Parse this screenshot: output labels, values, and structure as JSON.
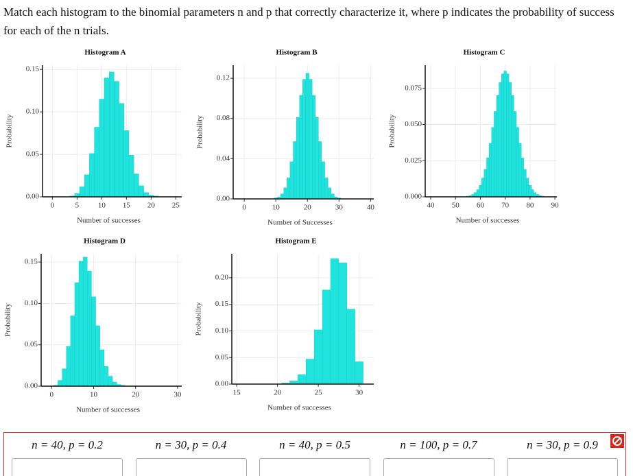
{
  "question": "Match each histogram to the binomial parameters n and p that correctly characterize it, where p indicates the probability of success for each of the n trials.",
  "chart_data": [
    {
      "type": "histogram",
      "title": "Histogram A",
      "xlabel": "Number of successes",
      "ylabel": "Probability",
      "color": "#1fe3dc",
      "grid": true,
      "x": [
        4,
        5,
        6,
        7,
        8,
        9,
        10,
        11,
        12,
        13,
        14,
        15,
        16,
        17,
        18,
        19,
        20,
        21,
        22
      ],
      "values": [
        0.001,
        0.004,
        0.012,
        0.026,
        0.051,
        0.082,
        0.115,
        0.14,
        0.147,
        0.136,
        0.11,
        0.078,
        0.049,
        0.027,
        0.013,
        0.005,
        0.002,
        0.001,
        0.0002
      ],
      "xlim": [
        -2,
        26.2
      ],
      "xticks": [
        0,
        5,
        10,
        15,
        20,
        25
      ],
      "ylim": [
        0,
        0.155
      ],
      "yticks": [
        {
          "value": 0,
          "label": "0.00"
        },
        0.05,
        {
          "value": 0.1,
          "label": "0.10"
        },
        0.15
      ]
    },
    {
      "type": "histogram",
      "title": "Histogram B",
      "xlabel": "Number of Successes",
      "ylabel": "Probability",
      "color": "#1fe3dc",
      "grid": true,
      "x": [
        10,
        11,
        12,
        13,
        14,
        15,
        16,
        17,
        18,
        19,
        20,
        21,
        22,
        23,
        24,
        25,
        26,
        27,
        28,
        29,
        30
      ],
      "values": [
        0.001,
        0.002,
        0.005,
        0.011,
        0.021,
        0.037,
        0.057,
        0.081,
        0.103,
        0.119,
        0.125,
        0.119,
        0.103,
        0.081,
        0.057,
        0.037,
        0.021,
        0.011,
        0.005,
        0.002,
        0.001
      ],
      "xlim": [
        -3.5,
        41
      ],
      "xticks": [
        0,
        10,
        20,
        30,
        40
      ],
      "ylim": [
        0,
        0.133
      ],
      "yticks": [
        {
          "value": 0,
          "label": "0.00"
        },
        0.04,
        0.08,
        0.12
      ]
    },
    {
      "type": "histogram",
      "title": "Histogram C",
      "xlabel": "Number of successes",
      "ylabel": "Probability",
      "color": "#1fe3dc",
      "grid": true,
      "x": [
        55,
        56,
        57,
        58,
        59,
        60,
        61,
        62,
        63,
        64,
        65,
        66,
        67,
        68,
        69,
        70,
        71,
        72,
        73,
        74,
        75,
        76,
        77,
        78,
        79,
        80,
        81,
        82,
        83,
        84,
        85
      ],
      "values": [
        0.0005,
        0.0009,
        0.0017,
        0.003,
        0.005,
        0.008,
        0.013,
        0.019,
        0.027,
        0.037,
        0.048,
        0.059,
        0.07,
        0.079,
        0.085,
        0.087,
        0.085,
        0.079,
        0.07,
        0.059,
        0.048,
        0.037,
        0.027,
        0.019,
        0.013,
        0.008,
        0.005,
        0.003,
        0.0017,
        0.0009,
        0.0005
      ],
      "xlim": [
        37.8,
        90.8
      ],
      "xticks": [
        40,
        50,
        60,
        70,
        80,
        90
      ],
      "ylim": [
        0,
        0.091
      ],
      "yticks": [
        {
          "value": 0,
          "label": "0.000"
        },
        0.025,
        {
          "value": 0.05,
          "label": "0.050"
        },
        0.075
      ]
    },
    {
      "type": "histogram",
      "title": "Histogram D",
      "xlabel": "Number of successes",
      "ylabel": "Probability",
      "color": "#1fe3dc",
      "grid": true,
      "x": [
        1,
        2,
        3,
        4,
        5,
        6,
        7,
        8,
        9,
        10,
        11,
        12,
        13,
        14,
        15,
        16,
        17,
        18
      ],
      "values": [
        0.001,
        0.007,
        0.021,
        0.048,
        0.085,
        0.125,
        0.151,
        0.156,
        0.139,
        0.108,
        0.073,
        0.044,
        0.024,
        0.012,
        0.005,
        0.002,
        0.001,
        0.0002
      ],
      "xlim": [
        -2.5,
        31
      ],
      "xticks": [
        0,
        10,
        20,
        30
      ],
      "ylim": [
        0,
        0.16
      ],
      "yticks": [
        {
          "value": 0,
          "label": "0.00"
        },
        0.05,
        {
          "value": 0.1,
          "label": "0.10"
        },
        0.15
      ]
    },
    {
      "type": "histogram",
      "title": "Histogram E",
      "xlabel": "Number of successes",
      "ylabel": "Probability",
      "color": "#1fe3dc",
      "grid": true,
      "x": [
        20,
        21,
        22,
        23,
        24,
        25,
        26,
        27,
        28,
        29,
        30
      ],
      "values": [
        0.0004,
        0.002,
        0.006,
        0.018,
        0.047,
        0.102,
        0.177,
        0.236,
        0.228,
        0.141,
        0.042
      ],
      "xlim": [
        14.4,
        31.8
      ],
      "xticks": [
        15,
        20,
        25,
        30
      ],
      "ylim": [
        0,
        0.245
      ],
      "yticks": [
        {
          "value": 0,
          "label": "0.00"
        },
        0.05,
        {
          "value": 0.1,
          "label": "0.10"
        },
        0.15,
        {
          "value": 0.2,
          "label": "0.20"
        }
      ]
    }
  ],
  "options": [
    "n = 40, p = 0.2",
    "n = 30, p = 0.4",
    "n = 40, p = 0.5",
    "n = 100, p = 0.7",
    "n = 30, p = 0.9"
  ]
}
